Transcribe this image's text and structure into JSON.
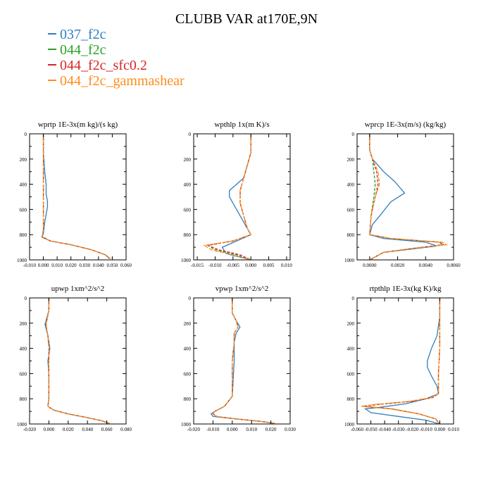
{
  "title": "CLUBB VAR at170E,9N",
  "legend": [
    {
      "label": "037_f2c",
      "color": "#2f7fbf"
    },
    {
      "label": "044_f2c",
      "color": "#2ca02c"
    },
    {
      "label": "044_f2c_sfc0.2",
      "color": "#d62728"
    },
    {
      "label": "044_f2c_gammashear",
      "color": "#ff8c1a"
    }
  ],
  "chart_data": [
    {
      "type": "line",
      "title": "wprtp  1E-3x(m kg)/(s kg)",
      "xlim": [
        -0.01,
        0.06
      ],
      "ylim": [
        0,
        1000
      ],
      "xticks": [
        "-0.010",
        "0.000",
        "0.010",
        "0.020",
        "0.030",
        "0.040",
        "0.050",
        "0.060"
      ],
      "yticks": [
        "0",
        "200",
        "400",
        "600",
        "800",
        "1000"
      ],
      "series": [
        {
          "name": "037_f2c",
          "color": "#2f7fbf",
          "x": [
            0,
            0,
            0.001,
            0.002,
            0.002,
            0.003,
            0.003,
            0.001,
            0.0,
            -0.001,
            0.005,
            0.02,
            0.035,
            0.045,
            0.048
          ],
          "y": [
            0,
            150,
            300,
            400,
            480,
            530,
            580,
            700,
            790,
            820,
            850,
            880,
            920,
            960,
            990
          ]
        },
        {
          "name": "044_f2c",
          "color": "#2ca02c",
          "x": [
            0,
            0,
            0,
            0,
            0,
            0,
            0,
            -0.001,
            0.005,
            0.02,
            0.035,
            0.045,
            0.048
          ],
          "y": [
            0,
            150,
            300,
            400,
            500,
            600,
            760,
            815,
            850,
            880,
            920,
            960,
            990
          ]
        },
        {
          "name": "044_f2c_sfc0.2",
          "color": "#d62728",
          "x": [
            0,
            0,
            0,
            0,
            0,
            0,
            -0.001,
            0.005,
            0.02,
            0.035,
            0.045,
            0.048
          ],
          "y": [
            0,
            150,
            300,
            450,
            600,
            760,
            815,
            850,
            880,
            920,
            960,
            990
          ]
        },
        {
          "name": "044_f2c_gammashear",
          "color": "#ff8c1a",
          "x": [
            0,
            0,
            0,
            0,
            0,
            0,
            -0.001,
            0.005,
            0.02,
            0.035,
            0.045,
            0.049
          ],
          "y": [
            0,
            150,
            300,
            450,
            600,
            760,
            815,
            850,
            880,
            920,
            960,
            990
          ]
        }
      ]
    },
    {
      "type": "line",
      "title": "wpthlp  1x(m K)/s",
      "xlim": [
        -0.016,
        0.011
      ],
      "ylim": [
        0,
        1000
      ],
      "xticks": [
        "-0.015",
        "-0.010",
        "-0.005",
        "0.000",
        "0.005",
        "0.010"
      ],
      "xtickvals": [
        -0.015,
        -0.01,
        -0.005,
        0,
        0.005,
        0.01
      ],
      "yticks": [
        "0",
        "200",
        "400",
        "600",
        "800",
        "1000"
      ],
      "series": [
        {
          "name": "037_f2c",
          "color": "#2f7fbf",
          "x": [
            0,
            0,
            -0.001,
            -0.002,
            -0.004,
            -0.006,
            -0.006,
            -0.005,
            -0.001,
            0,
            -0.004,
            -0.008,
            -0.007,
            0
          ],
          "y": [
            0,
            150,
            250,
            350,
            400,
            450,
            500,
            550,
            750,
            800,
            850,
            900,
            950,
            1000
          ]
        },
        {
          "name": "044_f2c",
          "color": "#2ca02c",
          "x": [
            0,
            0,
            -0.001,
            -0.002,
            -0.003,
            -0.003,
            -0.002,
            -0.001,
            0,
            -0.005,
            -0.012,
            -0.01,
            -0.004,
            0
          ],
          "y": [
            0,
            150,
            250,
            350,
            450,
            550,
            650,
            750,
            800,
            850,
            885,
            920,
            960,
            1000
          ]
        },
        {
          "name": "044_f2c_sfc0.2",
          "color": "#d62728",
          "x": [
            0,
            0,
            -0.001,
            -0.002,
            -0.003,
            -0.003,
            -0.002,
            -0.001,
            0,
            -0.005,
            -0.012,
            -0.009,
            -0.003,
            0
          ],
          "y": [
            0,
            150,
            250,
            350,
            450,
            550,
            650,
            750,
            800,
            850,
            885,
            920,
            960,
            1000
          ]
        },
        {
          "name": "044_f2c_gammashear",
          "color": "#ff8c1a",
          "x": [
            0,
            0,
            -0.001,
            -0.002,
            -0.003,
            -0.003,
            -0.002,
            -0.001,
            0,
            -0.005,
            -0.013,
            -0.011,
            -0.005,
            0
          ],
          "y": [
            0,
            150,
            250,
            350,
            450,
            550,
            650,
            750,
            800,
            850,
            885,
            920,
            960,
            1000
          ]
        }
      ]
    },
    {
      "type": "line",
      "title": "wprcp  1E-3x(m/s) (kg/kg)",
      "xlim": [
        -0.0009,
        0.006
      ],
      "ylim": [
        0,
        1000
      ],
      "xticks": [
        "0.0000",
        "0.0020",
        "0.0040",
        "0.0060"
      ],
      "xtickvals": [
        0,
        0.002,
        0.004,
        0.006
      ],
      "yticks": [
        "0",
        "200",
        "400",
        "600",
        "800",
        "1000"
      ],
      "series": [
        {
          "name": "037_f2c",
          "color": "#2f7fbf",
          "x": [
            0,
            0,
            0.0002,
            0.001,
            0.0018,
            0.0025,
            0.0015,
            0.0008,
            0.0002,
            0,
            0.001,
            0.004,
            0.0048,
            0.001,
            0
          ],
          "y": [
            0,
            130,
            200,
            300,
            380,
            470,
            540,
            640,
            720,
            800,
            830,
            860,
            890,
            940,
            1000
          ]
        },
        {
          "name": "044_f2c",
          "color": "#2ca02c",
          "x": [
            0,
            0,
            0.0002,
            0.0003,
            0.0004,
            0.0003,
            0.0001,
            0,
            0.0015,
            0.005,
            0.0052,
            0.003,
            0.001,
            0
          ],
          "y": [
            0,
            130,
            200,
            300,
            400,
            500,
            650,
            800,
            830,
            860,
            880,
            910,
            940,
            1000
          ]
        },
        {
          "name": "044_f2c_sfc0.2",
          "color": "#d62728",
          "x": [
            0,
            0,
            0.0002,
            0.0005,
            0.0006,
            0.0004,
            0.0001,
            0,
            0.0015,
            0.005,
            0.0053,
            0.003,
            0.001,
            0
          ],
          "y": [
            0,
            130,
            200,
            300,
            400,
            500,
            650,
            800,
            830,
            860,
            880,
            910,
            940,
            1000
          ]
        },
        {
          "name": "044_f2c_gammashear",
          "color": "#ff8c1a",
          "x": [
            0,
            0,
            0.0002,
            0.0006,
            0.0007,
            0.0004,
            0.0001,
            0,
            0.0015,
            0.0052,
            0.0055,
            0.003,
            0.001,
            0
          ],
          "y": [
            0,
            130,
            200,
            300,
            400,
            500,
            650,
            800,
            830,
            860,
            880,
            910,
            940,
            1000
          ]
        }
      ]
    },
    {
      "type": "line",
      "title": "upwp   1xm^2/s^2",
      "xlim": [
        -0.02,
        0.08
      ],
      "ylim": [
        0,
        1000
      ],
      "xticks": [
        "-0.020",
        "0.000",
        "0.020",
        "0.040",
        "0.060",
        "0.080"
      ],
      "yticks": [
        "0",
        "200",
        "400",
        "600",
        "800",
        "1000"
      ],
      "series": [
        {
          "name": "037_f2c",
          "color": "#2f7fbf",
          "x": [
            0,
            0,
            -0.004,
            -0.001,
            0.001,
            -0.001,
            0,
            0,
            -0.001,
            0.005,
            0.02,
            0.04,
            0.055,
            0.062
          ],
          "y": [
            0,
            100,
            210,
            300,
            400,
            500,
            600,
            800,
            860,
            890,
            920,
            950,
            975,
            995
          ]
        },
        {
          "name": "044_f2c",
          "color": "#2ca02c",
          "x": [
            0,
            0,
            -0.003,
            -0.001,
            0,
            0,
            0,
            -0.001,
            0.005,
            0.02,
            0.04,
            0.055,
            0.062
          ],
          "y": [
            0,
            100,
            210,
            300,
            400,
            550,
            800,
            860,
            890,
            920,
            950,
            975,
            995
          ]
        },
        {
          "name": "044_f2c_sfc0.2",
          "color": "#d62728",
          "x": [
            0,
            0,
            -0.003,
            -0.001,
            0,
            0,
            0,
            -0.001,
            0.005,
            0.02,
            0.04,
            0.055,
            0.063
          ],
          "y": [
            0,
            100,
            210,
            300,
            400,
            550,
            800,
            860,
            890,
            920,
            950,
            975,
            995
          ]
        },
        {
          "name": "044_f2c_gammashear",
          "color": "#ff8c1a",
          "x": [
            0,
            0,
            -0.003,
            -0.001,
            0,
            0,
            0,
            -0.001,
            0.005,
            0.02,
            0.04,
            0.055,
            0.063
          ],
          "y": [
            0,
            100,
            210,
            300,
            400,
            550,
            800,
            860,
            890,
            920,
            950,
            975,
            995
          ]
        }
      ]
    },
    {
      "type": "line",
      "title": "vpwp   1xm^2/s^2",
      "xlim": [
        -0.02,
        0.03
      ],
      "ylim": [
        0,
        1000
      ],
      "xticks": [
        "-0.020",
        "-0.010",
        "0.000",
        "0.010",
        "0.020",
        "0.030"
      ],
      "yticks": [
        "0",
        "200",
        "400",
        "600",
        "800",
        "1000"
      ],
      "series": [
        {
          "name": "037_f2c",
          "color": "#2f7fbf",
          "x": [
            0,
            0,
            0.002,
            0.004,
            0.002,
            0.001,
            0.001,
            0,
            -0.004,
            -0.009,
            -0.011,
            -0.01,
            0.002,
            0.015,
            0.022
          ],
          "y": [
            0,
            120,
            180,
            230,
            280,
            350,
            500,
            780,
            860,
            900,
            920,
            940,
            960,
            980,
            995
          ]
        },
        {
          "name": "044_f2c",
          "color": "#2ca02c",
          "x": [
            0,
            0,
            0.002,
            0.003,
            0.001,
            0.001,
            0,
            0,
            -0.004,
            -0.009,
            -0.01,
            -0.008,
            0.002,
            0.015,
            0.022
          ],
          "y": [
            0,
            120,
            180,
            230,
            280,
            350,
            500,
            780,
            860,
            900,
            920,
            940,
            960,
            980,
            995
          ]
        },
        {
          "name": "044_f2c_sfc0.2",
          "color": "#d62728",
          "x": [
            0,
            0,
            0.002,
            0.003,
            0.001,
            0.001,
            0,
            0,
            -0.004,
            -0.009,
            -0.01,
            -0.008,
            0.002,
            0.015,
            0.022
          ],
          "y": [
            0,
            120,
            180,
            230,
            280,
            350,
            500,
            780,
            860,
            900,
            920,
            940,
            960,
            980,
            995
          ]
        },
        {
          "name": "044_f2c_gammashear",
          "color": "#ff8c1a",
          "x": [
            0,
            0,
            0.002,
            0.003,
            0.001,
            0.001,
            0,
            0,
            -0.004,
            -0.009,
            -0.01,
            -0.008,
            0.002,
            0.015,
            0.022
          ],
          "y": [
            0,
            120,
            180,
            230,
            280,
            350,
            500,
            780,
            860,
            900,
            920,
            940,
            960,
            980,
            995
          ]
        }
      ]
    },
    {
      "type": "line",
      "title": "rtpthlp  1E-3x(kg K)/kg",
      "xlim": [
        -0.06,
        0.01
      ],
      "ylim": [
        0,
        1000
      ],
      "xticks": [
        "-0.060",
        "-0.050",
        "-0.040",
        "-0.030",
        "-0.020",
        "-0.010",
        "0.000",
        "0.010"
      ],
      "yticks": [
        "0",
        "200",
        "400",
        "600",
        "800",
        "1000"
      ],
      "series": [
        {
          "name": "037_f2c",
          "color": "#2f7fbf",
          "x": [
            0,
            0,
            -0.002,
            -0.006,
            -0.009,
            -0.009,
            -0.006,
            -0.002,
            -0.001,
            -0.01,
            -0.025,
            -0.045,
            -0.054,
            -0.05,
            -0.03,
            -0.01,
            0
          ],
          "y": [
            0,
            150,
            300,
            400,
            500,
            550,
            620,
            700,
            760,
            800,
            840,
            870,
            880,
            910,
            940,
            970,
            1000
          ]
        },
        {
          "name": "044_f2c",
          "color": "#2ca02c",
          "x": [
            0,
            0,
            0,
            -0.001,
            -0.001,
            -0.005,
            -0.02,
            -0.045,
            -0.056,
            -0.035,
            -0.015,
            -0.003,
            0
          ],
          "y": [
            0,
            150,
            400,
            600,
            760,
            790,
            820,
            845,
            860,
            880,
            920,
            960,
            1000
          ]
        },
        {
          "name": "044_f2c_sfc0.2",
          "color": "#d62728",
          "x": [
            0,
            0,
            0,
            -0.001,
            -0.001,
            -0.005,
            -0.02,
            -0.045,
            -0.055,
            -0.035,
            -0.015,
            -0.003,
            0
          ],
          "y": [
            0,
            150,
            400,
            600,
            760,
            790,
            820,
            845,
            860,
            880,
            920,
            960,
            1000
          ]
        },
        {
          "name": "044_f2c_gammashear",
          "color": "#ff8c1a",
          "x": [
            0,
            0,
            0,
            -0.001,
            -0.001,
            -0.006,
            -0.022,
            -0.047,
            -0.057,
            -0.036,
            -0.015,
            -0.003,
            0
          ],
          "y": [
            0,
            150,
            400,
            600,
            760,
            790,
            820,
            845,
            860,
            880,
            920,
            960,
            1000
          ]
        }
      ]
    }
  ]
}
